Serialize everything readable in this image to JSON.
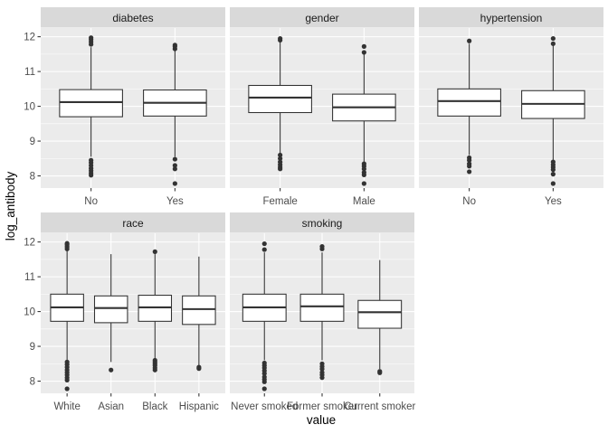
{
  "chart_data": {
    "type": "boxplot",
    "xlabel": "value",
    "ylabel": "log_antibody",
    "ylim": [
      7.65,
      12.25
    ],
    "yticks": [
      8,
      9,
      10,
      11,
      12
    ],
    "grid": true,
    "panels": [
      {
        "name": "diabetes",
        "categories": [
          {
            "label": "No",
            "q1": 9.7,
            "median": 10.12,
            "q3": 10.48,
            "whisker_low": 8.55,
            "whisker_high": 11.7,
            "outliers": [
              8.45,
              8.38,
              8.3,
              8.22,
              8.15,
              8.08,
              8.02,
              11.78,
              11.85,
              11.92,
              11.97
            ]
          },
          {
            "label": "Yes",
            "q1": 9.72,
            "median": 10.1,
            "q3": 10.47,
            "whisker_low": 8.55,
            "whisker_high": 11.6,
            "outliers": [
              8.48,
              8.3,
              8.2,
              7.78,
              11.65,
              11.72,
              11.76
            ]
          }
        ]
      },
      {
        "name": "gender",
        "categories": [
          {
            "label": "Female",
            "q1": 9.82,
            "median": 10.25,
            "q3": 10.6,
            "whisker_low": 8.65,
            "whisker_high": 11.85,
            "outliers": [
              8.6,
              8.5,
              8.4,
              8.32,
              8.25,
              8.2,
              11.9,
              11.95
            ]
          },
          {
            "label": "Male",
            "q1": 9.58,
            "median": 9.97,
            "q3": 10.35,
            "whisker_low": 8.4,
            "whisker_high": 11.5,
            "outliers": [
              8.35,
              8.28,
              8.2,
              8.1,
              8.03,
              7.78,
              11.55,
              11.72
            ]
          }
        ]
      },
      {
        "name": "hypertension",
        "categories": [
          {
            "label": "No",
            "q1": 9.72,
            "median": 10.15,
            "q3": 10.5,
            "whisker_low": 8.6,
            "whisker_high": 11.8,
            "outliers": [
              8.52,
              8.45,
              8.35,
              8.28,
              8.12,
              11.88
            ]
          },
          {
            "label": "Yes",
            "q1": 9.65,
            "median": 10.07,
            "q3": 10.45,
            "whisker_low": 8.45,
            "whisker_high": 11.75,
            "outliers": [
              8.4,
              8.32,
              8.25,
              8.18,
              8.05,
              7.78,
              11.8,
              11.95
            ]
          }
        ]
      },
      {
        "name": "race",
        "categories": [
          {
            "label": "White",
            "q1": 9.72,
            "median": 10.12,
            "q3": 10.5,
            "whisker_low": 8.6,
            "whisker_high": 11.75,
            "outliers": [
              8.55,
              8.48,
              8.4,
              8.32,
              8.25,
              8.18,
              8.1,
              8.03,
              7.78,
              11.8,
              11.86,
              11.92,
              11.96
            ]
          },
          {
            "label": "Asian",
            "q1": 9.68,
            "median": 10.1,
            "q3": 10.45,
            "whisker_low": 8.55,
            "whisker_high": 11.65,
            "outliers": [
              8.32
            ]
          },
          {
            "label": "Black",
            "q1": 9.72,
            "median": 10.12,
            "q3": 10.47,
            "whisker_low": 8.65,
            "whisker_high": 11.65,
            "outliers": [
              8.6,
              8.55,
              8.5,
              8.45,
              8.38,
              8.32,
              11.72
            ]
          },
          {
            "label": "Hispanic",
            "q1": 9.63,
            "median": 10.07,
            "q3": 10.45,
            "whisker_low": 8.45,
            "whisker_high": 11.58,
            "outliers": [
              8.4,
              8.36
            ]
          }
        ]
      },
      {
        "name": "smoking",
        "categories": [
          {
            "label": "Never smoked",
            "q1": 9.72,
            "median": 10.12,
            "q3": 10.5,
            "whisker_low": 8.6,
            "whisker_high": 11.7,
            "outliers": [
              8.52,
              8.45,
              8.38,
              8.3,
              8.22,
              8.12,
              8.05,
              7.98,
              7.78,
              11.78,
              11.95
            ]
          },
          {
            "label": "Former smoker",
            "q1": 9.72,
            "median": 10.15,
            "q3": 10.5,
            "whisker_low": 8.6,
            "whisker_high": 11.7,
            "outliers": [
              8.5,
              8.42,
              8.35,
              8.25,
              8.18,
              8.1,
              11.8,
              11.87
            ]
          },
          {
            "label": "Current smoker",
            "q1": 9.52,
            "median": 9.98,
            "q3": 10.32,
            "whisker_low": 8.35,
            "whisker_high": 11.48,
            "outliers": [
              8.28,
              8.24
            ]
          }
        ]
      }
    ]
  },
  "colors": {
    "panel_background": "#ebebeb",
    "strip_background": "#d9d9d9",
    "grid": "#ffffff",
    "box_fill": "#ffffff",
    "box_stroke": "#333333",
    "tick_text": "#4d4d4d"
  }
}
